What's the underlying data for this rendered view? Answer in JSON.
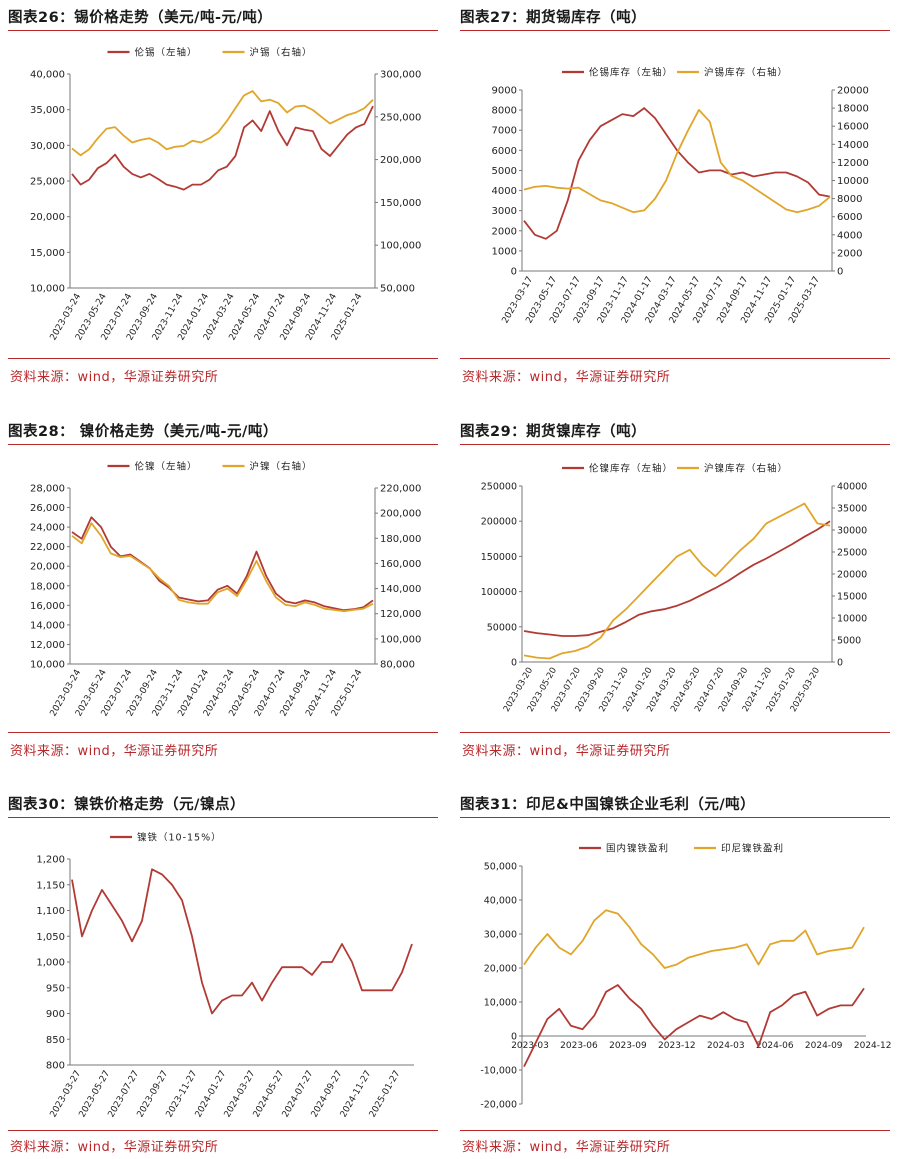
{
  "source_text": "资料来源：wind，华源证券研究所",
  "colors": {
    "red": "#b23a35",
    "gold": "#e0a52a",
    "accent": "#b8282b"
  },
  "chart_data": [
    {
      "id": "c26",
      "type": "line",
      "title": "图表26：锡价格走势（美元/吨-元/吨）",
      "legend": [
        "伦锡（左轴）",
        "沪锡（右轴）"
      ],
      "left_ticks": [
        "40,000",
        "35,000",
        "30,000",
        "25,000",
        "20,000",
        "15,000",
        "10,000"
      ],
      "right_ticks": [
        "300,000",
        "250,000",
        "200,000",
        "150,000",
        "100,000",
        "50,000"
      ],
      "x_ticks": [
        "2023-03-24",
        "2023-05-24",
        "2023-07-24",
        "2023-09-24",
        "2023-11-24",
        "2024-01-24",
        "2024-03-24",
        "2024-05-24",
        "2024-07-24",
        "2024-09-24",
        "2024-11-24",
        "2025-01-24"
      ],
      "ylim_left": [
        10000,
        40000
      ],
      "ylim_right": [
        50000,
        300000
      ],
      "series": [
        {
          "name": "伦锡",
          "axis": "left",
          "color": "#b23a35",
          "values": [
            26000,
            24500,
            25200,
            26800,
            27500,
            28700,
            27000,
            26000,
            25500,
            26000,
            25300,
            24500,
            24200,
            23800,
            24500,
            24500,
            25200,
            26500,
            27000,
            28500,
            32500,
            33500,
            32000,
            34800,
            32000,
            30000,
            32500,
            32200,
            32000,
            29500,
            28500,
            30000,
            31500,
            32500,
            33000,
            35500
          ]
        },
        {
          "name": "沪锡",
          "axis": "right",
          "color": "#e0a52a",
          "values": [
            213000,
            205000,
            212000,
            225000,
            236000,
            238000,
            228000,
            220000,
            223000,
            225000,
            220000,
            212000,
            215000,
            216000,
            222000,
            220000,
            225000,
            232000,
            245000,
            260000,
            275000,
            280000,
            268000,
            270000,
            266000,
            255000,
            262000,
            263000,
            258000,
            250000,
            242000,
            247000,
            252000,
            255000,
            260000,
            270000
          ]
        }
      ]
    },
    {
      "id": "c27",
      "type": "line",
      "title": "图表27：期货锡库存（吨）",
      "legend": [
        "伦锡库存（左轴）",
        "沪锡库存（右轴）"
      ],
      "left_ticks": [
        "9000",
        "8000",
        "7000",
        "6000",
        "5000",
        "4000",
        "3000",
        "2000",
        "1000",
        "0"
      ],
      "right_ticks": [
        "20000",
        "18000",
        "16000",
        "14000",
        "12000",
        "10000",
        "8000",
        "6000",
        "4000",
        "2000",
        "0"
      ],
      "x_ticks": [
        "2023-03-17",
        "2023-05-17",
        "2023-07-17",
        "2023-09-17",
        "2023-11-17",
        "2024-01-17",
        "2024-03-17",
        "2024-05-17",
        "2024-07-17",
        "2024-09-17",
        "2024-11-17",
        "2025-01-17",
        "2025-03-17"
      ],
      "ylim_left": [
        0,
        9000
      ],
      "ylim_right": [
        0,
        20000
      ],
      "series": [
        {
          "name": "伦锡库存",
          "axis": "left",
          "color": "#b23a35",
          "values": [
            2500,
            1800,
            1600,
            2000,
            3500,
            5500,
            6500,
            7200,
            7500,
            7800,
            7700,
            8100,
            7600,
            6800,
            6000,
            5400,
            4900,
            5000,
            5000,
            4800,
            4900,
            4700,
            4800,
            4900,
            4900,
            4700,
            4400,
            3800,
            3700
          ]
        },
        {
          "name": "沪锡库存",
          "axis": "right",
          "color": "#e0a52a",
          "values": [
            9000,
            9300,
            9400,
            9200,
            9100,
            9200,
            8500,
            7800,
            7500,
            7000,
            6500,
            6700,
            8000,
            10000,
            13000,
            15500,
            17800,
            16500,
            12000,
            10500,
            10000,
            9200,
            8400,
            7600,
            6800,
            6500,
            6800,
            7200,
            8200
          ]
        }
      ]
    },
    {
      "id": "c28",
      "type": "line",
      "title": "图表28： 镍价格走势（美元/吨-元/吨）",
      "legend": [
        "伦镍（左轴）",
        "沪镍（右轴）"
      ],
      "left_ticks": [
        "28,000",
        "26,000",
        "24,000",
        "22,000",
        "20,000",
        "18,000",
        "16,000",
        "14,000",
        "12,000",
        "10,000"
      ],
      "right_ticks": [
        "220,000",
        "200,000",
        "180,000",
        "160,000",
        "140,000",
        "120,000",
        "100,000",
        "80,000"
      ],
      "x_ticks": [
        "2023-03-24",
        "2023-05-24",
        "2023-07-24",
        "2023-09-24",
        "2023-11-24",
        "2024-01-24",
        "2024-03-24",
        "2024-05-24",
        "2024-07-24",
        "2024-09-24",
        "2024-11-24",
        "2025-01-24"
      ],
      "ylim_left": [
        10000,
        28000
      ],
      "ylim_right": [
        80000,
        220000
      ],
      "series": [
        {
          "name": "伦镍",
          "axis": "left",
          "color": "#b23a35",
          "values": [
            23500,
            22800,
            25000,
            24000,
            22000,
            21000,
            21200,
            20500,
            19800,
            18500,
            17800,
            16800,
            16600,
            16400,
            16500,
            17600,
            18000,
            17200,
            19000,
            21500,
            19000,
            17200,
            16400,
            16200,
            16500,
            16300,
            15900,
            15700,
            15500,
            15600,
            15800,
            16500
          ]
        },
        {
          "name": "沪镍",
          "axis": "right",
          "color": "#e0a52a",
          "values": [
            182000,
            176000,
            192000,
            182000,
            168000,
            165000,
            166000,
            161000,
            156000,
            148000,
            142000,
            131000,
            129000,
            128000,
            128000,
            137000,
            140000,
            134000,
            147000,
            162000,
            146000,
            133000,
            127000,
            126000,
            129000,
            127000,
            124000,
            123000,
            122000,
            123000,
            124000,
            128000
          ]
        }
      ]
    },
    {
      "id": "c29",
      "type": "line",
      "title": "图表29：期货镍库存（吨）",
      "legend": [
        "伦镍库存（左轴）",
        "沪镍库存（右轴）"
      ],
      "left_ticks": [
        "250000",
        "200000",
        "150000",
        "100000",
        "50000",
        "0"
      ],
      "right_ticks": [
        "40000",
        "35000",
        "30000",
        "25000",
        "20000",
        "15000",
        "10000",
        "5000",
        "0"
      ],
      "x_ticks": [
        "2023-03-20",
        "2023-05-20",
        "2023-07-20",
        "2023-09-20",
        "2023-11-20",
        "2024-01-20",
        "2024-03-20",
        "2024-05-20",
        "2024-07-20",
        "2024-09-20",
        "2024-11-20",
        "2025-01-20",
        "2025-03-20"
      ],
      "ylim_left": [
        0,
        250000
      ],
      "ylim_right": [
        0,
        40000
      ],
      "series": [
        {
          "name": "伦镍库存",
          "axis": "left",
          "color": "#b23a35",
          "values": [
            44000,
            41000,
            39000,
            37000,
            37000,
            38000,
            43000,
            48000,
            57000,
            67000,
            72000,
            75000,
            80000,
            87000,
            96000,
            105000,
            115000,
            127000,
            138000,
            147000,
            157000,
            167000,
            178000,
            188000,
            200000
          ]
        },
        {
          "name": "沪镍库存",
          "axis": "right",
          "color": "#e0a52a",
          "values": [
            1500,
            1000,
            800,
            2000,
            2500,
            3500,
            5500,
            9500,
            12000,
            15000,
            18000,
            21000,
            24000,
            25500,
            22000,
            19500,
            22500,
            25500,
            28000,
            31500,
            33000,
            34500,
            36000,
            31500,
            31000
          ]
        }
      ]
    },
    {
      "id": "c30",
      "type": "line",
      "title": "图表30：镍铁价格走势（元/镍点）",
      "legend": [
        "镍铁（10-15%）"
      ],
      "left_ticks": [
        "1,200",
        "1,150",
        "1,100",
        "1,050",
        "1,000",
        "950",
        "900",
        "850",
        "800"
      ],
      "x_ticks": [
        "2023-03-27",
        "2023-05-27",
        "2023-07-27",
        "2023-09-27",
        "2023-11-27",
        "2024-01-27",
        "2024-03-27",
        "2024-05-27",
        "2024-07-27",
        "2024-09-27",
        "2024-11-27",
        "2025-01-27"
      ],
      "ylim_left": [
        800,
        1200
      ],
      "series": [
        {
          "name": "镍铁（10-15%）",
          "axis": "left",
          "color": "#b23a35",
          "values": [
            1160,
            1050,
            1100,
            1140,
            1110,
            1080,
            1040,
            1080,
            1180,
            1170,
            1150,
            1120,
            1050,
            960,
            900,
            925,
            935,
            935,
            960,
            925,
            960,
            990,
            990,
            990,
            975,
            1000,
            1000,
            1035,
            1000,
            945,
            945,
            945,
            945,
            980,
            1035
          ]
        }
      ]
    },
    {
      "id": "c31",
      "type": "line",
      "title": "图表31：印尼&中国镍铁企业毛利（元/吨）",
      "legend": [
        "国内镍铁盈利",
        "印尼镍铁盈利"
      ],
      "left_ticks": [
        "50,000",
        "40,000",
        "30,000",
        "20,000",
        "10,000",
        "0",
        "-10,000",
        "-20,000"
      ],
      "x_ticks": [
        "2023-03",
        "2023-06",
        "2023-09",
        "2023-12",
        "2024-03",
        "2024-06",
        "2024-09",
        "2024-12"
      ],
      "ylim_left": [
        -20000,
        50000
      ],
      "series": [
        {
          "name": "国内镍铁盈利",
          "axis": "left",
          "color": "#b23a35",
          "values": [
            -9000,
            -2000,
            5000,
            8000,
            3000,
            2000,
            6000,
            13000,
            15000,
            11000,
            8000,
            3000,
            -1000,
            2000,
            4000,
            6000,
            5000,
            7000,
            5000,
            4000,
            -3000,
            7000,
            9000,
            12000,
            13000,
            6000,
            8000,
            9000,
            9000,
            14000
          ]
        },
        {
          "name": "印尼镍铁盈利",
          "axis": "left",
          "color": "#e0a52a",
          "values": [
            21000,
            26000,
            30000,
            26000,
            24000,
            28000,
            34000,
            37000,
            36000,
            32000,
            27000,
            24000,
            20000,
            21000,
            23000,
            24000,
            25000,
            25500,
            26000,
            27000,
            21000,
            27000,
            28000,
            28000,
            31000,
            24000,
            25000,
            25500,
            26000,
            32000
          ]
        }
      ]
    }
  ]
}
